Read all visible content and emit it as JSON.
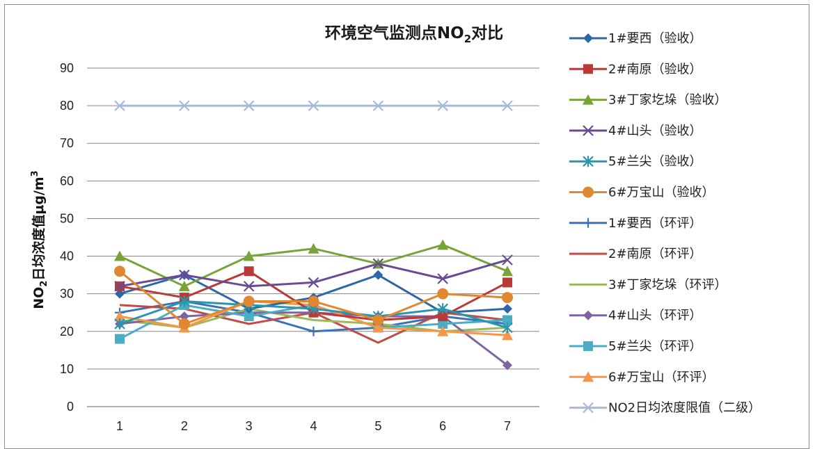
{
  "chart_data": {
    "type": "line",
    "title": "环境空气监测点NO",
    "title_sub": "2",
    "title_suffix": "对比",
    "ylabel_main": "NO",
    "ylabel_sub": "2",
    "ylabel_rest": "日均浓度值μg/m",
    "ylabel_sup": "3",
    "ylim": [
      0,
      90
    ],
    "yticks": [
      0,
      10,
      20,
      30,
      40,
      50,
      60,
      70,
      80,
      90
    ],
    "categories": [
      "1",
      "2",
      "3",
      "4",
      "5",
      "6",
      "7"
    ],
    "grid": true,
    "legend_position": "right",
    "series": [
      {
        "name": "1#要西（验收）",
        "color": "#2e67a8",
        "marker": "diamond",
        "values": [
          30,
          35,
          26,
          29,
          35,
          25,
          26
        ]
      },
      {
        "name": "2#南原（验收）",
        "color": "#b93a37",
        "marker": "square",
        "values": [
          32,
          29,
          36,
          25,
          23,
          24,
          33
        ]
      },
      {
        "name": "3#丁家圪垛（验收）",
        "color": "#78a339",
        "marker": "triangle",
        "values": [
          40,
          32,
          40,
          42,
          38,
          43,
          36
        ]
      },
      {
        "name": "4#山头（验收）",
        "color": "#6a4a93",
        "marker": "x",
        "values": [
          32,
          35,
          32,
          33,
          38,
          34,
          39
        ]
      },
      {
        "name": "5#兰尖（验收）",
        "color": "#2a96ad",
        "marker": "asterisk",
        "values": [
          22,
          28,
          27,
          26,
          24,
          26,
          21
        ]
      },
      {
        "name": "6#万宝山（验收）",
        "color": "#e08831",
        "marker": "circle",
        "values": [
          36,
          22,
          28,
          28,
          23,
          30,
          29
        ]
      },
      {
        "name": "1#要西（环评）",
        "color": "#3b72b8",
        "marker": "plus",
        "values": [
          25,
          28,
          25,
          20,
          21,
          24,
          22
        ]
      },
      {
        "name": "2#南原（环评）",
        "color": "#c14b48",
        "marker": "none",
        "values": [
          27,
          26,
          22,
          25,
          17,
          25,
          23
        ]
      },
      {
        "name": "3#丁家圪垛（环评）",
        "color": "#9bbb59",
        "marker": "none",
        "values": [
          23,
          21,
          26,
          23,
          22,
          20,
          21
        ]
      },
      {
        "name": "4#山头（环评）",
        "color": "#8064a2",
        "marker": "diamond",
        "values": [
          22,
          24,
          25,
          25,
          24,
          24,
          11
        ]
      },
      {
        "name": "5#兰尖（环评）",
        "color": "#4bacc6",
        "marker": "square",
        "values": [
          18,
          27,
          24,
          27,
          21,
          22,
          23
        ]
      },
      {
        "name": "6#万宝山（环评）",
        "color": "#f79646",
        "marker": "triangle",
        "values": [
          24,
          21,
          28,
          27,
          21,
          20,
          19
        ]
      },
      {
        "name": "NO2日均浓度限值（二级）",
        "color": "#a5b9d9",
        "marker": "x",
        "values": [
          80,
          80,
          80,
          80,
          80,
          80,
          80
        ]
      }
    ]
  }
}
